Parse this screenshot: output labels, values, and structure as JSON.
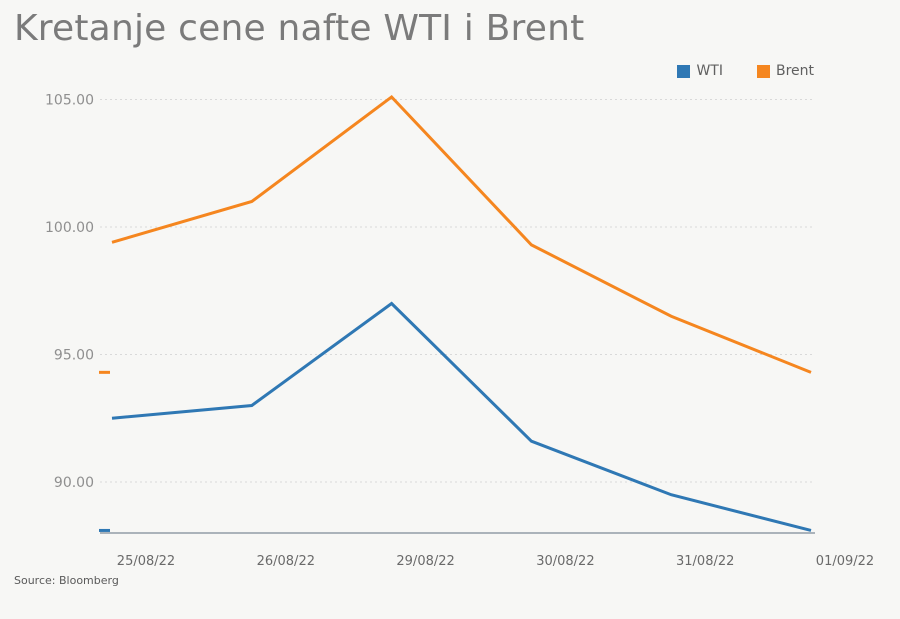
{
  "title": "Kretanje cene nafte WTI i Brent",
  "source": "Source: Bloomberg",
  "chart_data": {
    "type": "line",
    "title": "Kretanje cene nafte WTI i Brent",
    "categories": [
      "25/08/22",
      "26/08/22",
      "29/08/22",
      "30/08/22",
      "31/08/22",
      "01/09/22"
    ],
    "series": [
      {
        "name": "WTI",
        "color": "#2f78b4",
        "values": [
          92.5,
          93.0,
          97.0,
          91.6,
          89.5,
          88.1
        ]
      },
      {
        "name": "Brent",
        "color": "#f5861f",
        "values": [
          99.4,
          101.0,
          105.1,
          99.3,
          96.5,
          94.3
        ]
      }
    ],
    "yticks": [
      "90.00",
      "95.00",
      "100.00",
      "105.00"
    ],
    "ylim": [
      88,
      105
    ],
    "grid": true,
    "legend": "top-right",
    "last_value_markers": [
      88.1,
      94.3
    ],
    "xlabel": "",
    "ylabel": ""
  }
}
